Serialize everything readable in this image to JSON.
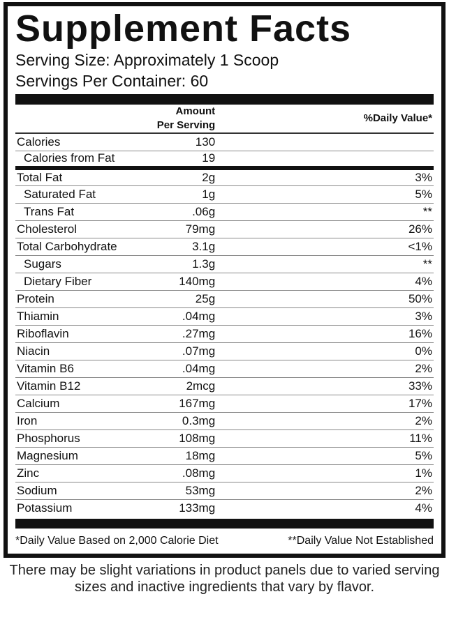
{
  "title": "Supplement Facts",
  "serving_size": "Serving Size: Approximately 1 Scoop",
  "servings_per_container": "Servings Per Container: 60",
  "headers": {
    "amount": "Amount Per Serving",
    "dv": "%Daily Value*"
  },
  "rows": [
    {
      "name": "Calories",
      "amount": "130",
      "dv": "",
      "indent": false
    },
    {
      "name": "Calories from Fat",
      "amount": "19",
      "dv": "",
      "indent": true
    },
    {
      "name": "Total Fat",
      "amount": "2g",
      "dv": "3%",
      "indent": false
    },
    {
      "name": "Saturated Fat",
      "amount": "1g",
      "dv": "5%",
      "indent": true
    },
    {
      "name": "Trans Fat",
      "amount": ".06g",
      "dv": "**",
      "indent": true
    },
    {
      "name": "Cholesterol",
      "amount": "79mg",
      "dv": "26%",
      "indent": false
    },
    {
      "name": "Total Carbohydrate",
      "amount": "3.1g",
      "dv": "<1%",
      "indent": false
    },
    {
      "name": "Sugars",
      "amount": "1.3g",
      "dv": "**",
      "indent": true
    },
    {
      "name": "Dietary Fiber",
      "amount": "140mg",
      "dv": "4%",
      "indent": true
    },
    {
      "name": "Protein",
      "amount": "25g",
      "dv": "50%",
      "indent": false
    },
    {
      "name": "Thiamin",
      "amount": ".04mg",
      "dv": "3%",
      "indent": false
    },
    {
      "name": "Riboflavin",
      "amount": ".27mg",
      "dv": "16%",
      "indent": false
    },
    {
      "name": "Niacin",
      "amount": ".07mg",
      "dv": "0%",
      "indent": false
    },
    {
      "name": "Vitamin B6",
      "amount": ".04mg",
      "dv": "2%",
      "indent": false
    },
    {
      "name": "Vitamin B12",
      "amount": "2mcg",
      "dv": "33%",
      "indent": false
    },
    {
      "name": "Calcium",
      "amount": "167mg",
      "dv": "17%",
      "indent": false
    },
    {
      "name": "Iron",
      "amount": "0.3mg",
      "dv": "2%",
      "indent": false
    },
    {
      "name": "Phosphorus",
      "amount": "108mg",
      "dv": "11%",
      "indent": false
    },
    {
      "name": "Magnesium",
      "amount": "18mg",
      "dv": "5%",
      "indent": false
    },
    {
      "name": "Zinc",
      "amount": ".08mg",
      "dv": "1%",
      "indent": false
    },
    {
      "name": "Sodium",
      "amount": "53mg",
      "dv": "2%",
      "indent": false
    },
    {
      "name": "Potassium",
      "amount": "133mg",
      "dv": "4%",
      "indent": false
    }
  ],
  "footnote_left": "*Daily Value Based on 2,000 Calorie Diet",
  "footnote_right": "**Daily Value Not Established",
  "disclaimer": "There may be slight variations in product panels due to varied serving sizes and inactive ingredients that vary by flavor."
}
